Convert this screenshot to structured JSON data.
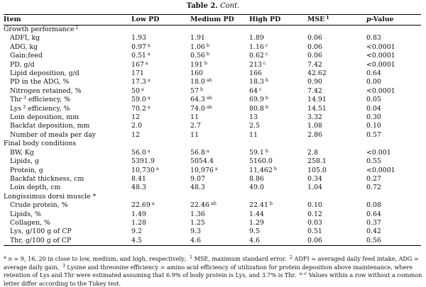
{
  "caption": {
    "prefix": "Table 2.",
    "text": "Cont."
  },
  "headers": {
    "item": "Item",
    "low": "Low PD",
    "medium": "Medium PD",
    "high": "High PD",
    "mse": "MSE",
    "mse_sup": "1",
    "pvalue_italic": "p",
    "pvalue_rest": "-Value"
  },
  "rows": [
    {
      "type": "section",
      "label": "Growth performance",
      "sup": "2"
    },
    {
      "type": "data",
      "label": "ADFI, kg",
      "low": "1.93",
      "medium": "1.91",
      "high": "1.89",
      "mse": "0.06",
      "p": "0.83"
    },
    {
      "type": "data",
      "label": "ADG, kg",
      "low": "0.97",
      "low_sup": "a",
      "medium": "1.06",
      "medium_sup": "b",
      "high": "1.16",
      "high_sup": "c",
      "mse": "0.06",
      "p": "<0.0001"
    },
    {
      "type": "data",
      "label": "Gain:feed",
      "low": "0.51",
      "low_sup": "a",
      "medium": "0.56",
      "medium_sup": "b",
      "high": "0.62",
      "high_sup": "c",
      "mse": "0.06",
      "p": "<0.0001"
    },
    {
      "type": "data",
      "label": "PD, g/d",
      "low": "167",
      "low_sup": "a",
      "medium": "191",
      "medium_sup": "b",
      "high": "213",
      "high_sup": "c",
      "mse": "7.42",
      "p": "<0.0001"
    },
    {
      "type": "data",
      "label": "Lipid deposition, g/d",
      "low": "171",
      "medium": "160",
      "high": "166",
      "mse": "42.62",
      "p": "0.64"
    },
    {
      "type": "data",
      "label": "PD in the ADG, %",
      "low": "17.3",
      "low_sup": "a",
      "medium": "18.0",
      "medium_sup": "ab",
      "high": "18.3",
      "high_sup": "b",
      "mse": "0.90",
      "p": "0.00"
    },
    {
      "type": "data",
      "label": "Nitrogen retained, %",
      "low": "50",
      "low_sup": "a",
      "medium": "57",
      "medium_sup": "b",
      "high": "64",
      "high_sup": "c",
      "mse": "7.42",
      "p": "<0.0001"
    },
    {
      "type": "data",
      "label": "Thr",
      "label_sup": "3",
      "label_rest": "efficiency, %",
      "low": "59.0",
      "low_sup": "a",
      "medium": "64.3",
      "medium_sup": "ab",
      "high": "69.9",
      "high_sup": "b",
      "mse": "14.91",
      "p": "0.05"
    },
    {
      "type": "data",
      "label": "Lys",
      "label_sup": "3",
      "label_rest": "efficiency, %",
      "low": "70.2",
      "low_sup": "a",
      "medium": "74.0",
      "medium_sup": "ab",
      "high": "80.8",
      "high_sup": "b",
      "mse": "14.51",
      "p": "0.04"
    },
    {
      "type": "data",
      "label": "Loin deposition, mm",
      "low": "12",
      "medium": "11",
      "high": "13",
      "mse": "3.32",
      "p": "0.30"
    },
    {
      "type": "data",
      "label": "Backfat deposition, mm",
      "low": "2.0",
      "medium": "2.7",
      "high": "2.5",
      "mse": "1.08",
      "p": "0.10"
    },
    {
      "type": "data",
      "label": "Number of meals per day",
      "low": "12",
      "medium": "11",
      "high": "11",
      "mse": "2.86",
      "p": "0.57"
    },
    {
      "type": "section",
      "label": "Final body conditions"
    },
    {
      "type": "data",
      "label": "BW, Kg",
      "low": "56.0",
      "low_sup": "a",
      "medium": "56.8",
      "medium_sup": "a",
      "high": "59.1",
      "high_sup": "b",
      "mse": "2.8",
      "p": "<0.001"
    },
    {
      "type": "data",
      "label": "Lipids, g",
      "low": "5391.9",
      "medium": "5054.4",
      "high": "5160.0",
      "mse": "258.1",
      "p": "0.55"
    },
    {
      "type": "data",
      "label": "Protein, g",
      "low": "10,730",
      "low_sup": "a",
      "medium": "10,976",
      "medium_sup": "a",
      "high": "11,462",
      "high_sup": "b",
      "mse": "105.0",
      "p": "<0.0001"
    },
    {
      "type": "data",
      "label": "Backfat thickness, cm",
      "low": "8.41",
      "medium": "9.07",
      "high": "8.86",
      "mse": "0.34",
      "p": "0.27"
    },
    {
      "type": "data",
      "label": "Loin depth, cm",
      "low": "48.3",
      "medium": "48.3",
      "high": "49.0",
      "mse": "1.04",
      "p": "0.72"
    },
    {
      "type": "section",
      "label": "Longissimus dorsi muscle *"
    },
    {
      "type": "data",
      "label": "Crude protein, %",
      "low": "22.69",
      "low_sup": "a",
      "medium": "22.46",
      "medium_sup": "ab",
      "high": "22.41",
      "high_sup": "b",
      "mse": "0.10",
      "p": "0.08"
    },
    {
      "type": "data",
      "label": "Lipids, %",
      "low": "1.49",
      "medium": "1.36",
      "high": "1.44",
      "mse": "0.12",
      "p": "0.64"
    },
    {
      "type": "data",
      "label": "Collagen, %",
      "low": "1.28",
      "medium": "1.25",
      "high": "1.29",
      "mse": "0.03",
      "p": "0.37"
    },
    {
      "type": "data",
      "label": "Lys, g/100 g of CP",
      "low": "9.2",
      "medium": "9.3",
      "high": "9.5",
      "mse": "0.51",
      "p": "0.42"
    },
    {
      "type": "data",
      "label": "Thr, g/100 g of CP",
      "low": "4.5",
      "medium": "4.6",
      "high": "4.6",
      "mse": "0.06",
      "p": "0.56"
    }
  ],
  "footnote": {
    "star": "*",
    "n_italic": "n",
    "t1": "= 9, 16, 20 in close to low, medium, and high, respectively;",
    "s1": "1",
    "t2": "MSE, maximum standard error.",
    "s2": "2",
    "t3": "ADFI = averaged daily feed intake, ADG = average daily gain,",
    "s3": "3",
    "t4": "Lysine and threonine efficiency = amino acid efficiency of utilization for protein deposition above maintenance, where retention of Lys and Thr were estimated assuming that 6.9% of body protein is Lys, and 3.7% is Thr.",
    "s4": "a–c",
    "t5": "Values within a row without a common letter differ according to the Tukey test."
  }
}
